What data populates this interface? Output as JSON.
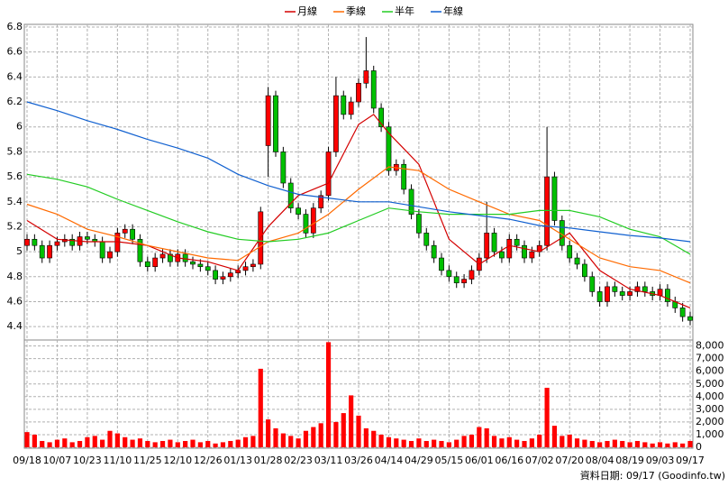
{
  "chart_data": {
    "type": "candlestick",
    "source": "資料日期: 09/17  (Goodinfo.tw)",
    "categories": [
      "09/18",
      null,
      null,
      null,
      "10/07",
      null,
      null,
      null,
      "10/23",
      null,
      null,
      null,
      "11/10",
      null,
      null,
      null,
      "11/25",
      null,
      null,
      null,
      "12/10",
      null,
      null,
      null,
      "12/26",
      null,
      null,
      null,
      "01/13",
      null,
      null,
      null,
      "01/28",
      null,
      null,
      null,
      "02/23",
      null,
      null,
      null,
      "03/11",
      null,
      null,
      null,
      "03/26",
      null,
      null,
      null,
      "04/14",
      null,
      null,
      null,
      "04/29",
      null,
      null,
      null,
      "05/15",
      null,
      null,
      null,
      "06/01",
      null,
      null,
      null,
      "06/16",
      null,
      null,
      null,
      "07/02",
      null,
      null,
      null,
      "07/20",
      null,
      null,
      null,
      "08/04",
      null,
      null,
      null,
      "08/19",
      null,
      null,
      null,
      "09/03",
      null,
      null,
      null,
      "09/17"
    ],
    "open": [
      5.05,
      5.1,
      5.05,
      4.95,
      5.05,
      5.08,
      5.1,
      5.05,
      5.12,
      5.1,
      5.08,
      4.95,
      5.0,
      5.15,
      5.18,
      5.1,
      4.92,
      4.88,
      4.95,
      4.98,
      4.92,
      4.98,
      4.92,
      4.9,
      4.88,
      4.85,
      4.78,
      4.8,
      4.83,
      4.85,
      4.88,
      4.9,
      5.85,
      6.25,
      5.8,
      5.55,
      5.35,
      5.3,
      5.15,
      5.35,
      5.45,
      5.8,
      6.25,
      6.1,
      6.2,
      6.35,
      6.45,
      6.15,
      6.0,
      5.65,
      5.7,
      5.5,
      5.3,
      5.15,
      5.05,
      4.95,
      4.85,
      4.8,
      4.75,
      4.78,
      4.85,
      4.95,
      5.15,
      5.0,
      4.95,
      5.1,
      5.05,
      4.95,
      5.0,
      5.05,
      5.6,
      5.25,
      5.05,
      4.95,
      4.9,
      4.8,
      4.68,
      4.6,
      4.72,
      4.68,
      4.65,
      4.68,
      4.72,
      4.68,
      4.65,
      4.7,
      4.6,
      4.55,
      4.48
    ],
    "high": [
      5.14,
      5.14,
      5.09,
      5.09,
      5.12,
      5.14,
      5.14,
      5.16,
      5.16,
      5.14,
      5.12,
      5.04,
      5.19,
      5.22,
      5.22,
      5.14,
      4.96,
      4.99,
      5.02,
      5.02,
      5.02,
      5.02,
      4.96,
      4.94,
      4.92,
      4.89,
      4.84,
      4.87,
      4.89,
      4.92,
      4.94,
      5.36,
      6.32,
      6.29,
      5.84,
      5.59,
      5.39,
      5.34,
      5.39,
      5.49,
      5.84,
      6.4,
      6.29,
      6.24,
      6.39,
      6.72,
      6.49,
      6.19,
      6.04,
      5.74,
      5.74,
      5.54,
      5.34,
      5.19,
      5.09,
      4.99,
      4.89,
      4.84,
      4.82,
      4.89,
      4.99,
      5.4,
      5.19,
      5.04,
      5.14,
      5.14,
      5.09,
      5.04,
      5.09,
      6.0,
      5.64,
      5.29,
      5.09,
      4.99,
      4.94,
      4.84,
      4.72,
      4.76,
      4.76,
      4.72,
      4.72,
      4.76,
      4.76,
      4.72,
      4.74,
      4.74,
      4.64,
      4.59,
      4.52
    ],
    "low": [
      5.01,
      5.01,
      4.91,
      4.91,
      5.01,
      5.04,
      5.01,
      5.01,
      5.06,
      5.04,
      4.91,
      4.91,
      4.96,
      5.11,
      5.06,
      4.88,
      4.84,
      4.84,
      4.91,
      4.88,
      4.88,
      4.88,
      4.86,
      4.84,
      4.81,
      4.74,
      4.74,
      4.76,
      4.79,
      4.81,
      4.84,
      4.86,
      5.6,
      5.76,
      5.51,
      5.31,
      5.26,
      5.11,
      5.11,
      5.31,
      5.41,
      5.76,
      6.06,
      6.06,
      6.16,
      6.31,
      6.11,
      5.96,
      5.61,
      5.61,
      5.46,
      5.26,
      5.11,
      5.01,
      4.91,
      4.81,
      4.76,
      4.71,
      4.71,
      4.74,
      4.81,
      4.91,
      4.96,
      4.91,
      4.91,
      5.01,
      4.91,
      4.91,
      4.96,
      5.01,
      5.21,
      5.01,
      4.91,
      4.86,
      4.76,
      4.64,
      4.56,
      4.56,
      4.64,
      4.61,
      4.61,
      4.64,
      4.64,
      4.61,
      4.61,
      4.56,
      4.51,
      4.44,
      4.41
    ],
    "close": [
      5.1,
      5.05,
      4.95,
      5.05,
      5.08,
      5.1,
      5.05,
      5.12,
      5.1,
      5.08,
      4.95,
      5.0,
      5.15,
      5.18,
      5.1,
      4.92,
      4.88,
      4.95,
      4.98,
      4.92,
      4.98,
      4.92,
      4.9,
      4.88,
      4.85,
      4.78,
      4.8,
      4.83,
      4.85,
      4.88,
      4.9,
      5.32,
      6.25,
      5.8,
      5.55,
      5.35,
      5.3,
      5.15,
      5.35,
      5.45,
      5.8,
      6.25,
      6.1,
      6.2,
      6.35,
      6.45,
      6.15,
      6.0,
      5.65,
      5.7,
      5.5,
      5.3,
      5.15,
      5.05,
      4.95,
      4.85,
      4.8,
      4.75,
      4.78,
      4.85,
      4.95,
      5.15,
      5.0,
      4.95,
      5.1,
      5.05,
      4.95,
      5.0,
      5.05,
      5.6,
      5.25,
      5.05,
      4.95,
      4.9,
      4.8,
      4.68,
      4.6,
      4.72,
      4.68,
      4.65,
      4.68,
      4.72,
      4.68,
      4.65,
      4.7,
      4.6,
      4.55,
      4.48,
      4.45
    ],
    "volume": [
      1200,
      1000,
      500,
      400,
      600,
      700,
      400,
      500,
      800,
      900,
      600,
      1300,
      1100,
      800,
      600,
      700,
      500,
      400,
      500,
      600,
      400,
      500,
      600,
      400,
      500,
      300,
      400,
      500,
      600,
      800,
      900,
      6200,
      2200,
      1500,
      1100,
      900,
      700,
      1300,
      1600,
      1900,
      8300,
      2000,
      2700,
      4100,
      2500,
      1500,
      1300,
      1000,
      800,
      700,
      600,
      500,
      700,
      500,
      600,
      500,
      400,
      600,
      900,
      1000,
      1600,
      1500,
      900,
      700,
      800,
      600,
      500,
      700,
      1000,
      4700,
      1700,
      900,
      1000,
      700,
      600,
      500,
      400,
      500,
      600,
      500,
      400,
      500,
      400,
      300,
      400,
      300,
      400,
      300,
      500
    ],
    "up_color": "#ff0000",
    "down_color": "#00c000",
    "volume_color": "#ff0000",
    "series": [
      {
        "name": "月線",
        "color": "#d40000",
        "x": [
          0,
          4,
          8,
          12,
          16,
          20,
          24,
          28,
          32,
          36,
          40,
          44,
          46,
          48,
          52,
          56,
          60,
          64,
          68,
          72,
          76,
          80,
          84,
          88
        ],
        "values": [
          5.25,
          5.1,
          5.08,
          5.08,
          5.05,
          4.95,
          4.92,
          4.85,
          5.2,
          5.45,
          5.55,
          6.02,
          6.1,
          5.95,
          5.7,
          5.1,
          4.9,
          5.05,
          5.0,
          5.15,
          4.85,
          4.7,
          4.65,
          4.55
        ]
      },
      {
        "name": "季線",
        "color": "#ff6a00",
        "x": [
          0,
          4,
          8,
          12,
          16,
          20,
          24,
          28,
          32,
          36,
          40,
          44,
          48,
          52,
          56,
          60,
          64,
          68,
          72,
          76,
          80,
          84,
          88
        ],
        "values": [
          5.38,
          5.3,
          5.18,
          5.12,
          5.05,
          5.0,
          4.95,
          4.93,
          5.08,
          5.15,
          5.3,
          5.5,
          5.68,
          5.65,
          5.5,
          5.4,
          5.3,
          5.25,
          5.1,
          4.95,
          4.88,
          4.85,
          4.75
        ]
      },
      {
        "name": "半年",
        "color": "#22cc22",
        "x": [
          0,
          4,
          8,
          12,
          16,
          20,
          24,
          28,
          32,
          36,
          40,
          44,
          48,
          52,
          56,
          60,
          64,
          68,
          72,
          76,
          80,
          84,
          88
        ],
        "values": [
          5.62,
          5.58,
          5.52,
          5.42,
          5.33,
          5.24,
          5.16,
          5.1,
          5.08,
          5.1,
          5.15,
          5.25,
          5.35,
          5.32,
          5.3,
          5.3,
          5.3,
          5.33,
          5.33,
          5.28,
          5.18,
          5.12,
          4.98
        ]
      },
      {
        "name": "年線",
        "color": "#1060d0",
        "x": [
          0,
          4,
          8,
          12,
          16,
          20,
          24,
          28,
          32,
          36,
          40,
          44,
          48,
          52,
          56,
          60,
          64,
          68,
          72,
          76,
          80,
          84,
          88
        ],
        "values": [
          6.2,
          6.13,
          6.05,
          5.98,
          5.9,
          5.83,
          5.75,
          5.62,
          5.53,
          5.46,
          5.43,
          5.4,
          5.4,
          5.36,
          5.32,
          5.29,
          5.26,
          5.21,
          5.19,
          5.16,
          5.13,
          5.11,
          5.08
        ]
      }
    ],
    "ylim": [
      4.3,
      6.8
    ],
    "yticks": [
      4.4,
      4.6,
      4.8,
      5,
      5.2,
      5.4,
      5.6,
      5.8,
      6,
      6.2,
      6.4,
      6.6,
      6.8
    ],
    "y2lim": [
      0,
      8400
    ],
    "y2ticks": [
      0,
      {
        "value": 1000,
        "label": "1,000"
      },
      {
        "value": 2000,
        "label": "2,000"
      },
      {
        "value": 3000,
        "label": "3,000"
      },
      {
        "value": 4000,
        "label": "4,000"
      },
      {
        "value": 5000,
        "label": "5,000"
      },
      {
        "value": 6000,
        "label": "6,000"
      },
      {
        "value": 7000,
        "label": "7,000"
      },
      {
        "value": 8000,
        "label": "8,000"
      }
    ],
    "grid": true
  }
}
